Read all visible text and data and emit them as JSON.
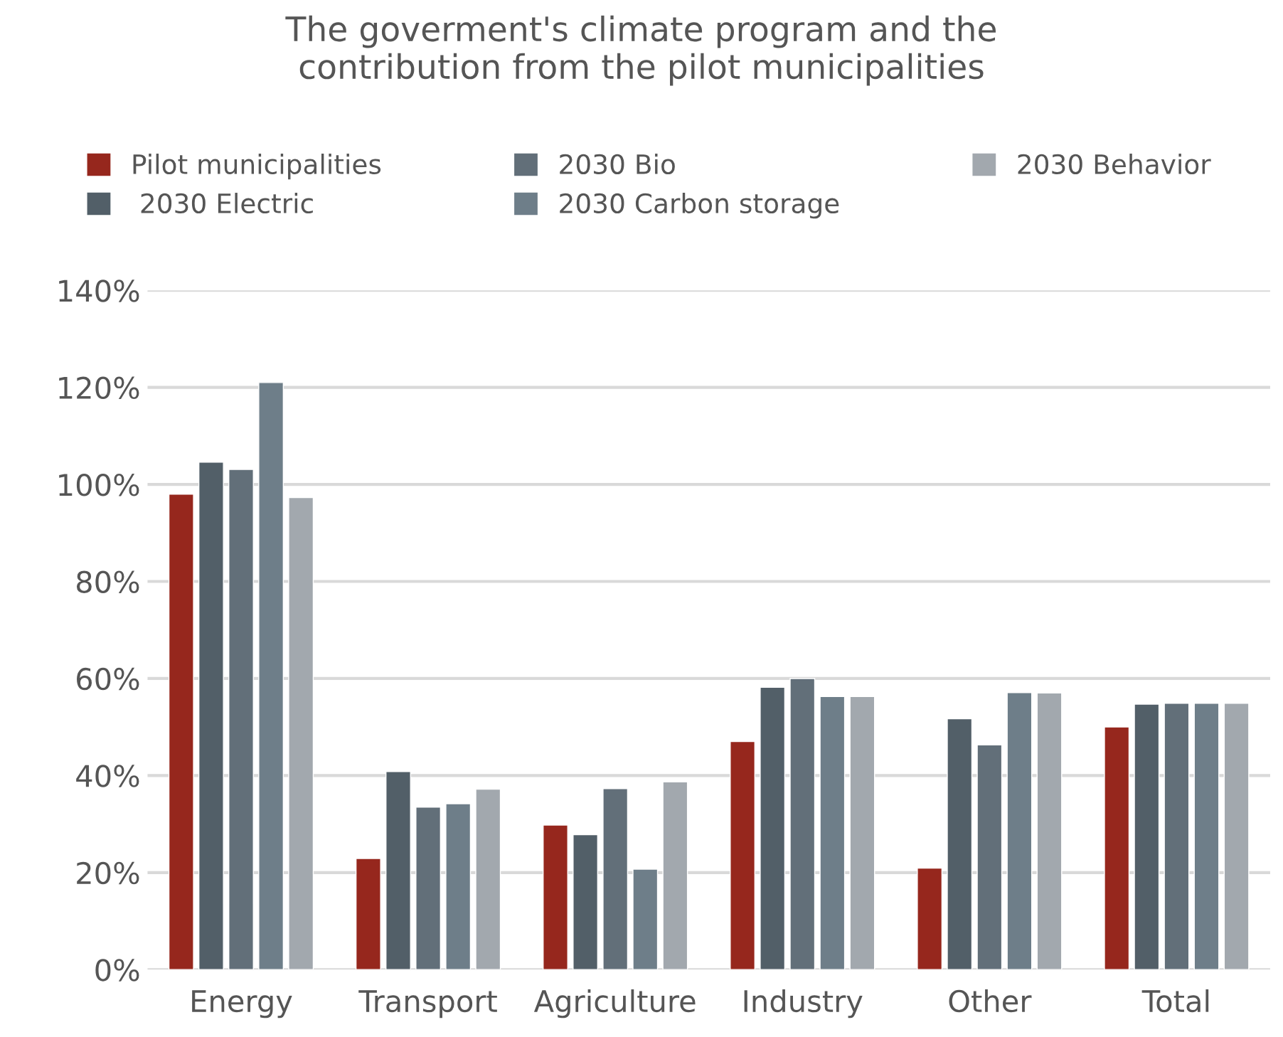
{
  "chart_data": {
    "type": "bar",
    "title": "The goverment's climate program and the\ncontribution from the pilot municipalities",
    "categories": [
      "Energy",
      "Transport",
      "Agriculture",
      "Industry",
      "Other",
      "Total"
    ],
    "series": [
      {
        "name": "Pilot municipalities",
        "color": "#96271d",
        "values": [
          98,
          22.9,
          29.8,
          47,
          20.9,
          50
        ]
      },
      {
        "name": " 2030 Electric",
        "color": "#525f68",
        "values": [
          104.6,
          40.8,
          27.8,
          58.2,
          51.7,
          54.7
        ]
      },
      {
        "name": "2030 Bio",
        "color": "#626f79",
        "values": [
          103.1,
          33.5,
          37.3,
          60,
          46.3,
          54.9
        ]
      },
      {
        "name": "2030 Carbon storage",
        "color": "#6e7e89",
        "values": [
          121,
          34.2,
          20.7,
          56.3,
          57.1,
          54.9
        ]
      },
      {
        "name": "2030 Behavior",
        "color": "#a2a8ae",
        "values": [
          97.3,
          37.2,
          38.7,
          56.3,
          57,
          54.9
        ]
      }
    ],
    "ylim": [
      0,
      140
    ],
    "yticks": [
      {
        "value": 0,
        "label": "0%"
      },
      {
        "value": 20,
        "label": "20%"
      },
      {
        "value": 40,
        "label": "40%"
      },
      {
        "value": 60,
        "label": "60%"
      },
      {
        "value": 80,
        "label": "80%"
      },
      {
        "value": 100,
        "label": "100%"
      },
      {
        "value": 120,
        "label": "120%"
      },
      {
        "value": 140,
        "label": "140%"
      }
    ],
    "grid": "y",
    "legend": "top"
  }
}
